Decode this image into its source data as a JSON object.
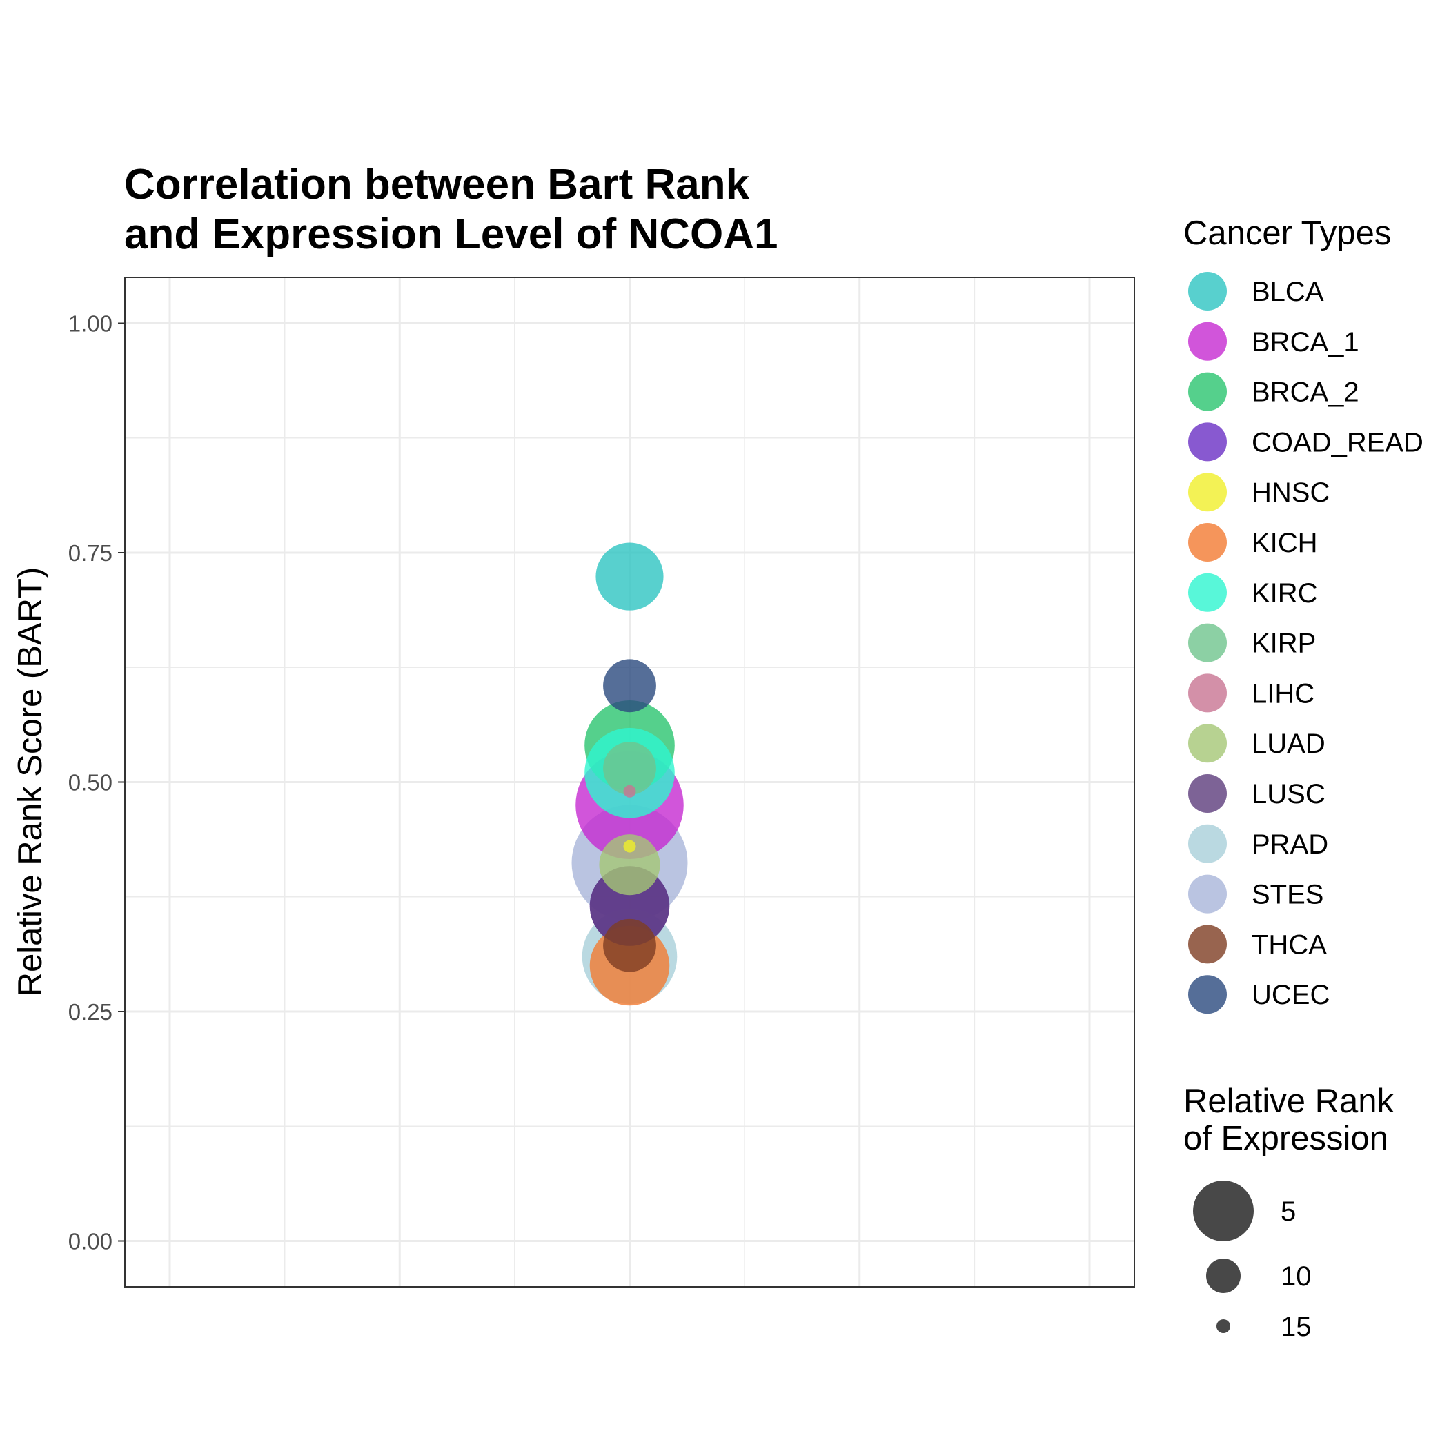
{
  "chart_data": {
    "type": "scatter",
    "title": [
      "Correlation between Bart Rank",
      "and Expression Level of NCOA1"
    ],
    "xlabel": "",
    "ylabel": "Relative Rank Score (BART)",
    "ylim": [
      -0.05,
      1.05
    ],
    "y_ticks": [
      {
        "value": 0.0,
        "label": "0.00"
      },
      {
        "value": 0.25,
        "label": "0.25"
      },
      {
        "value": 0.5,
        "label": "0.50"
      },
      {
        "value": 0.75,
        "label": "0.75"
      },
      {
        "value": 1.0,
        "label": "1.00"
      }
    ],
    "x_ticks": [],
    "grid": true,
    "legend_color": {
      "title": "Cancer Types",
      "placement": "right"
    },
    "legend_size": {
      "title": [
        "Relative Rank",
        "of Expression"
      ],
      "entries": [
        {
          "label": "5",
          "value": 5
        },
        {
          "label": "10",
          "value": 10
        },
        {
          "label": "15",
          "value": 15
        }
      ]
    },
    "series": [
      {
        "name": "BLCA",
        "color": "#2ec4c2",
        "y": 0.724,
        "size": 11
      },
      {
        "name": "BRCA_1",
        "color": "#c52bd1",
        "y": 0.475,
        "size": 3
      },
      {
        "name": "BRCA_2",
        "color": "#2ac46f",
        "y": 0.54,
        "size": 7
      },
      {
        "name": "COAD_READ",
        "color": "#6a2fc4",
        "y": 0.365,
        "size": 9
      },
      {
        "name": "HNSC",
        "color": "#f0ef2a",
        "y": 0.43,
        "size": 16
      },
      {
        "name": "KICH",
        "color": "#f27a32",
        "y": 0.3,
        "size": 9
      },
      {
        "name": "KIRC",
        "color": "#2ef5d0",
        "y": 0.51,
        "size": 7
      },
      {
        "name": "KIRP",
        "color": "#6fc48d",
        "y": 0.515,
        "size": 13
      },
      {
        "name": "LIHC",
        "color": "#c87492",
        "y": 0.49,
        "size": 16
      },
      {
        "name": "LUAD",
        "color": "#a5c775",
        "y": 0.41,
        "size": 12
      },
      {
        "name": "LUSC",
        "color": "#5c3c7c",
        "y": 0.365,
        "size": 9
      },
      {
        "name": "PRAD",
        "color": "#a9cfd9",
        "y": 0.31,
        "size": 6
      },
      {
        "name": "STES",
        "color": "#a9b5da",
        "y": 0.412,
        "size": 1
      },
      {
        "name": "THCA",
        "color": "#7e3d23",
        "y": 0.322,
        "size": 13
      },
      {
        "name": "UCEC",
        "color": "#2b4a7e",
        "y": 0.605,
        "size": 13
      }
    ]
  }
}
